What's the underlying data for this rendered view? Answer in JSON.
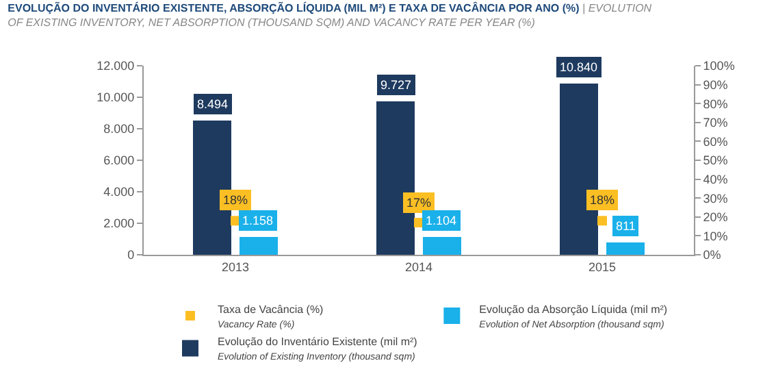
{
  "chart_data": {
    "type": "bar",
    "title": "EVOLUÇÃO DO INVENTÁRIO EXISTENTE, ABSORÇÃO LÍQUIDA (MIL M²) E TAXA DE VACÂNCIA POR ANO (%)",
    "subtitle": "| EVOLUTION OF EXISTING INVENTORY, NET ABSORPTION (THOUSAND SQM) AND VACANCY RATE PER YEAR (%)",
    "categories": [
      "2013",
      "2014",
      "2015"
    ],
    "series": [
      {
        "name": "Taxa de Vacância (%)\nVacancy Rate (%)",
        "type": "scatter",
        "axis": "y2",
        "marker": "square",
        "color": "#fbbf24",
        "values": [
          18,
          17,
          18
        ],
        "value_labels": [
          "18%",
          "17%",
          "18%"
        ]
      },
      {
        "name": "Evolução da Absorção Líquida (mil m²)\nEvolution of Net Absorption (thousand sqm)",
        "color": "#1ab0ea",
        "values": [
          1158,
          1104,
          811
        ],
        "value_labels": [
          "1.158",
          "1.104",
          "811"
        ]
      },
      {
        "name": "Evolução do Inventário Existente (mil m²)\nEvolution of Existing Inventory (thousand sqm)",
        "color": "#1e3a5f",
        "values": [
          8494,
          9727,
          10840
        ],
        "value_labels": [
          "8.494",
          "9.727",
          "10.840"
        ]
      }
    ],
    "ylim": [
      0,
      12000
    ],
    "yticks": [
      0,
      {
        "value": 2000,
        "label": "2.000"
      },
      {
        "value": 4000,
        "label": "4.000"
      },
      {
        "value": 6000,
        "label": "6.000"
      },
      {
        "value": 8000,
        "label": "8.000"
      },
      {
        "value": 10000,
        "label": "10.000"
      },
      {
        "value": 12000,
        "label": "12.000"
      }
    ],
    "y2lim": [
      0,
      100
    ],
    "y2ticks": [
      {
        "value": 0,
        "label": "0%"
      },
      {
        "value": 10,
        "label": "10%"
      },
      {
        "value": 20,
        "label": "20%"
      },
      {
        "value": 30,
        "label": "30%"
      },
      {
        "value": 40,
        "label": "40%"
      },
      {
        "value": 50,
        "label": "50%"
      },
      {
        "value": 60,
        "label": "60%"
      },
      {
        "value": 70,
        "label": "70%"
      },
      {
        "value": 80,
        "label": "80%"
      },
      {
        "value": 90,
        "label": "90%"
      },
      {
        "value": 100,
        "label": "100%"
      }
    ],
    "grid": false,
    "legend": "bottom"
  }
}
